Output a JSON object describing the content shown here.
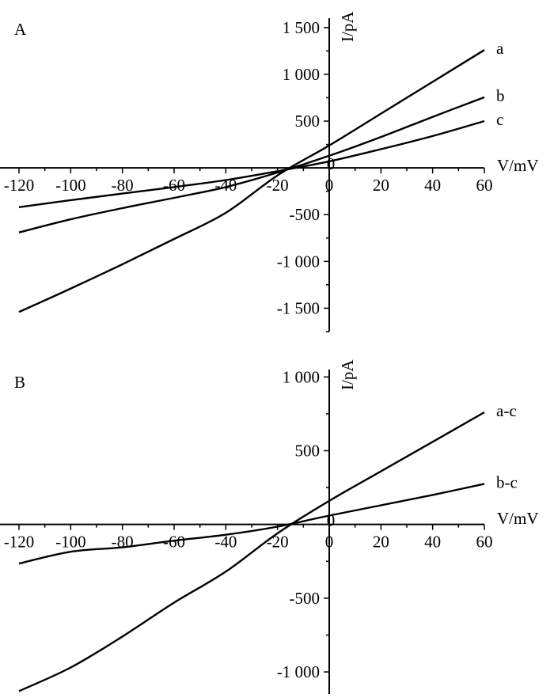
{
  "chart_data": [
    {
      "type": "line",
      "panel_label": "A",
      "xlabel": "V/mV",
      "ylabel": "I/pA",
      "xlim": [
        -120,
        60
      ],
      "ylim": [
        -1750,
        1600
      ],
      "x_ticks": [
        -120,
        -100,
        -80,
        -60,
        -40,
        -20,
        0,
        20,
        40,
        60
      ],
      "x_tick_labels": [
        "-120",
        "-100",
        "-80",
        "-60",
        "-40",
        "-20",
        "0",
        "20",
        "40",
        "60"
      ],
      "y_ticks": [
        -1500,
        -1000,
        -500,
        0,
        500,
        1000,
        1500
      ],
      "y_tick_labels": [
        "-1 500",
        "-1 000",
        "-500",
        "0",
        "500",
        "1 000",
        "1 500"
      ],
      "series": [
        {
          "name": "a",
          "x": [
            -120,
            -100,
            -80,
            -60,
            -40,
            -20,
            0,
            20,
            40,
            60
          ],
          "y": [
            -1540,
            -1290,
            -1030,
            -760,
            -480,
            -80,
            240,
            580,
            920,
            1260
          ]
        },
        {
          "name": "b",
          "x": [
            -120,
            -100,
            -80,
            -60,
            -40,
            -20,
            0,
            20,
            40,
            60
          ],
          "y": [
            -690,
            -550,
            -430,
            -320,
            -205,
            -50,
            130,
            330,
            545,
            755
          ]
        },
        {
          "name": "c",
          "x": [
            -120,
            -100,
            -80,
            -60,
            -40,
            -20,
            0,
            20,
            40,
            60
          ],
          "y": [
            -420,
            -345,
            -275,
            -205,
            -130,
            -35,
            70,
            200,
            340,
            500
          ]
        }
      ]
    },
    {
      "type": "line",
      "panel_label": "B",
      "xlabel": "V/mV",
      "ylabel": "I/pA",
      "xlim": [
        -120,
        60
      ],
      "ylim": [
        -1150,
        1050
      ],
      "x_ticks": [
        -120,
        -100,
        -80,
        -60,
        -40,
        -20,
        0,
        20,
        40,
        60
      ],
      "x_tick_labels": [
        "-120",
        "-100",
        "-80",
        "-60",
        "-40",
        "-20",
        "0",
        "20",
        "40",
        "60"
      ],
      "y_ticks": [
        -1000,
        -500,
        0,
        500,
        1000
      ],
      "y_tick_labels": [
        "-1 000",
        "-500",
        "0",
        "500",
        "1 000"
      ],
      "series": [
        {
          "name": "a-c",
          "x": [
            -120,
            -100,
            -80,
            -60,
            -40,
            -20,
            0,
            20,
            40,
            60
          ],
          "y": [
            -1130,
            -970,
            -760,
            -530,
            -320,
            -60,
            160,
            360,
            560,
            760
          ]
        },
        {
          "name": "b-c",
          "x": [
            -120,
            -100,
            -80,
            -60,
            -40,
            -20,
            0,
            20,
            40,
            60
          ],
          "y": [
            -265,
            -185,
            -155,
            -110,
            -70,
            -15,
            60,
            130,
            200,
            275
          ]
        }
      ]
    }
  ]
}
